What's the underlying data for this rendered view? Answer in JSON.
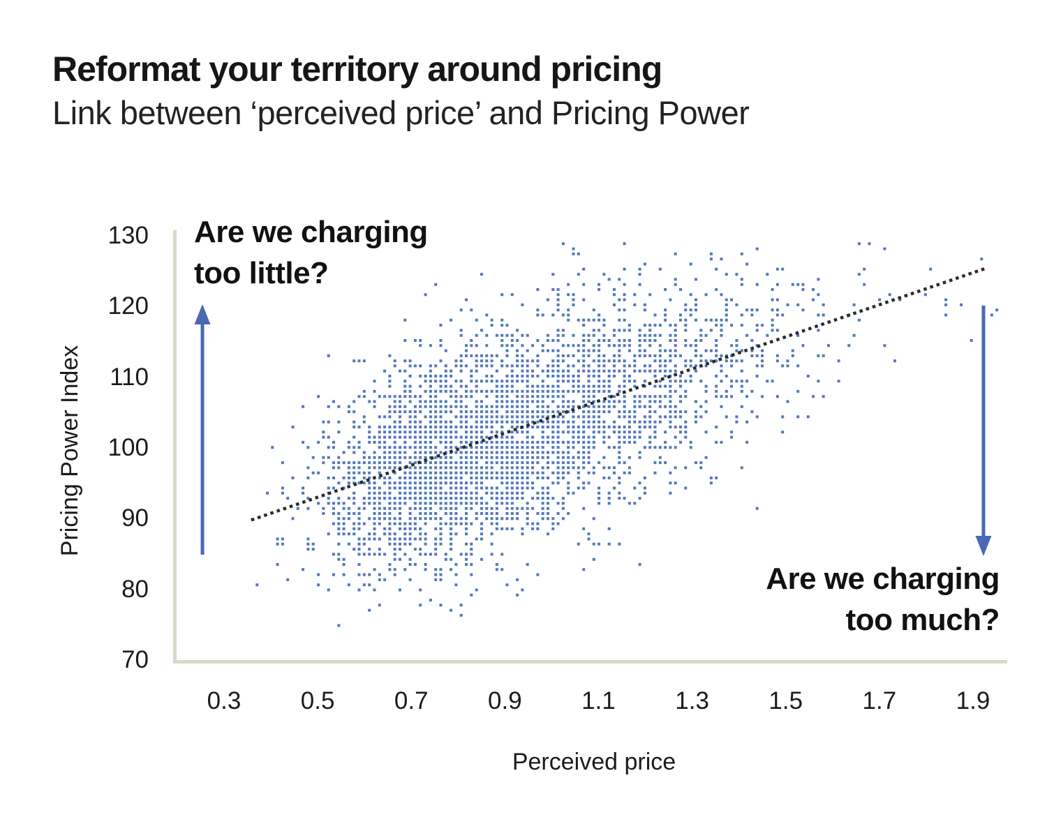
{
  "header": {
    "title": "Reformat your territory around pricing",
    "subtitle": "Link between ‘perceived price’ and Pricing Power"
  },
  "annotations": {
    "too_little": {
      "line1": "Are we charging",
      "line2": "too little?"
    },
    "too_much": {
      "line1": "Are we charging",
      "line2": "too much?"
    }
  },
  "colors": {
    "point": "#3a66b0",
    "trend": "#2b2b2b",
    "arrow": "#4969b5",
    "axis": "#d9d8c9",
    "text": "#1b1b1b"
  },
  "chart_data": {
    "type": "scatter",
    "title": "Link between perceived price and Pricing Power",
    "xlabel": "Perceived price",
    "ylabel": "Pricing Power Index",
    "x_ticks": [
      "0.3",
      "0.5",
      "0.7",
      "0.9",
      "1.1",
      "1.3",
      "1.5",
      "1.7",
      "1.9"
    ],
    "y_ticks": [
      130,
      120,
      110,
      100,
      90,
      80,
      70
    ],
    "xlim": [
      0.19,
      1.97
    ],
    "ylim": [
      70,
      130.8
    ],
    "grid": false,
    "legend": "none",
    "n_points": 4000,
    "x_distribution": {
      "type": "lognormal",
      "median": 0.9,
      "sigma": 0.25,
      "clip": [
        0.34,
        1.96
      ]
    },
    "y_model": {
      "intercept": 81.7,
      "slope": 22.7,
      "noise_sd": 7.3,
      "clip": [
        72.5,
        129.5
      ]
    },
    "quantize": {
      "x": 0.0109,
      "y": 0.72
    },
    "trend_line": {
      "x1": 0.358,
      "y1": 89.8,
      "x2": 1.927,
      "y2": 125.4,
      "style": "dotted"
    },
    "seed": 7
  }
}
